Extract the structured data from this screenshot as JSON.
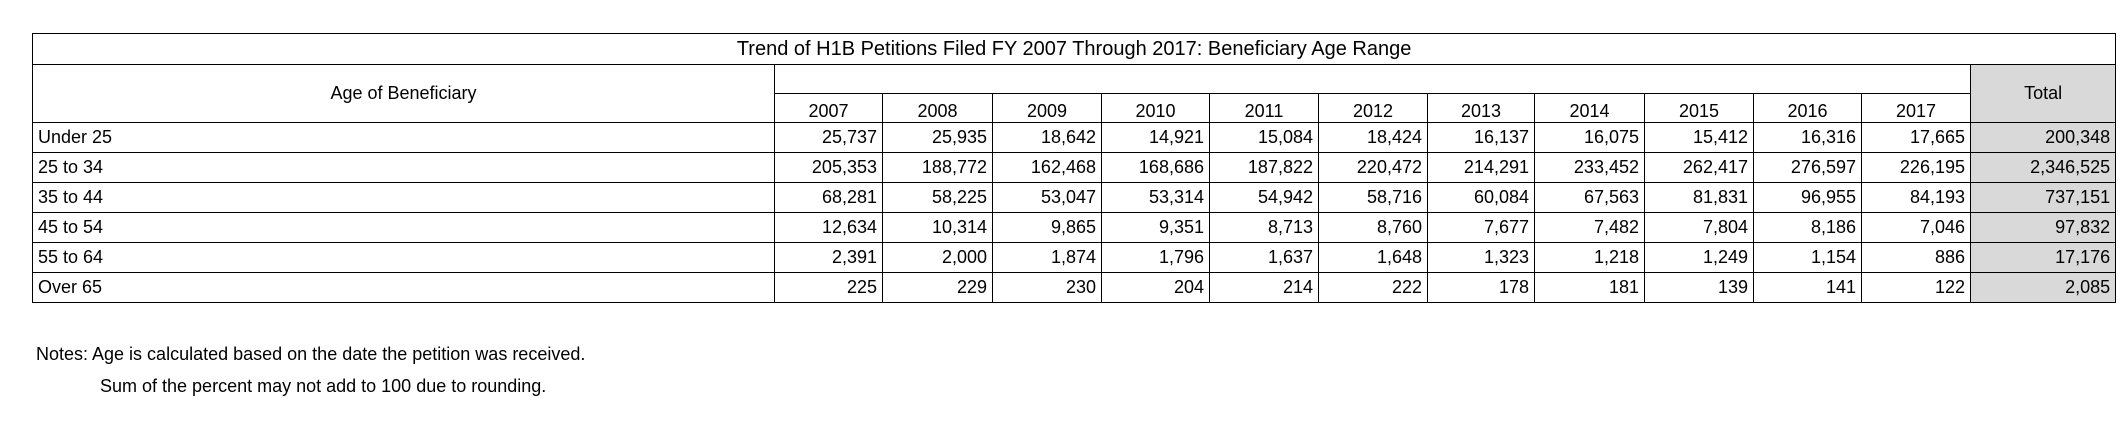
{
  "table": {
    "title": "Trend of H1B Petitions Filed FY 2007 Through 2017: Beneficiary Age Range",
    "row_header_label": "Age of Beneficiary",
    "total_label": "Total",
    "years": [
      "2007",
      "2008",
      "2009",
      "2010",
      "2011",
      "2012",
      "2013",
      "2014",
      "2015",
      "2016",
      "2017"
    ],
    "rows": [
      {
        "label": "Under 25",
        "values": [
          "25,737",
          "25,935",
          "18,642",
          "14,921",
          "15,084",
          "18,424",
          "16,137",
          "16,075",
          "15,412",
          "16,316",
          "17,665"
        ],
        "total": "200,348"
      },
      {
        "label": "25 to 34",
        "values": [
          "205,353",
          "188,772",
          "162,468",
          "168,686",
          "187,822",
          "220,472",
          "214,291",
          "233,452",
          "262,417",
          "276,597",
          "226,195"
        ],
        "total": "2,346,525"
      },
      {
        "label": "35 to 44",
        "values": [
          "68,281",
          "58,225",
          "53,047",
          "53,314",
          "54,942",
          "58,716",
          "60,084",
          "67,563",
          "81,831",
          "96,955",
          "84,193"
        ],
        "total": "737,151"
      },
      {
        "label": "45 to 54",
        "values": [
          "12,634",
          "10,314",
          "9,865",
          "9,351",
          "8,713",
          "8,760",
          "7,677",
          "7,482",
          "7,804",
          "8,186",
          "7,046"
        ],
        "total": "97,832"
      },
      {
        "label": "55 to 64",
        "values": [
          "2,391",
          "2,000",
          "1,874",
          "1,796",
          "1,637",
          "1,648",
          "1,323",
          "1,218",
          "1,249",
          "1,154",
          "886"
        ],
        "total": "17,176"
      },
      {
        "label": "Over 65",
        "values": [
          "225",
          "229",
          "230",
          "204",
          "214",
          "222",
          "178",
          "181",
          "139",
          "141",
          "122"
        ],
        "total": "2,085"
      }
    ]
  },
  "notes": {
    "line1": "Notes: Age is calculated based on the date the petition was received.",
    "line2": "Sum of the percent may not add to 100 due to rounding."
  },
  "colors": {
    "total_column_bg": "#d9d9d9",
    "border": "#000000"
  }
}
